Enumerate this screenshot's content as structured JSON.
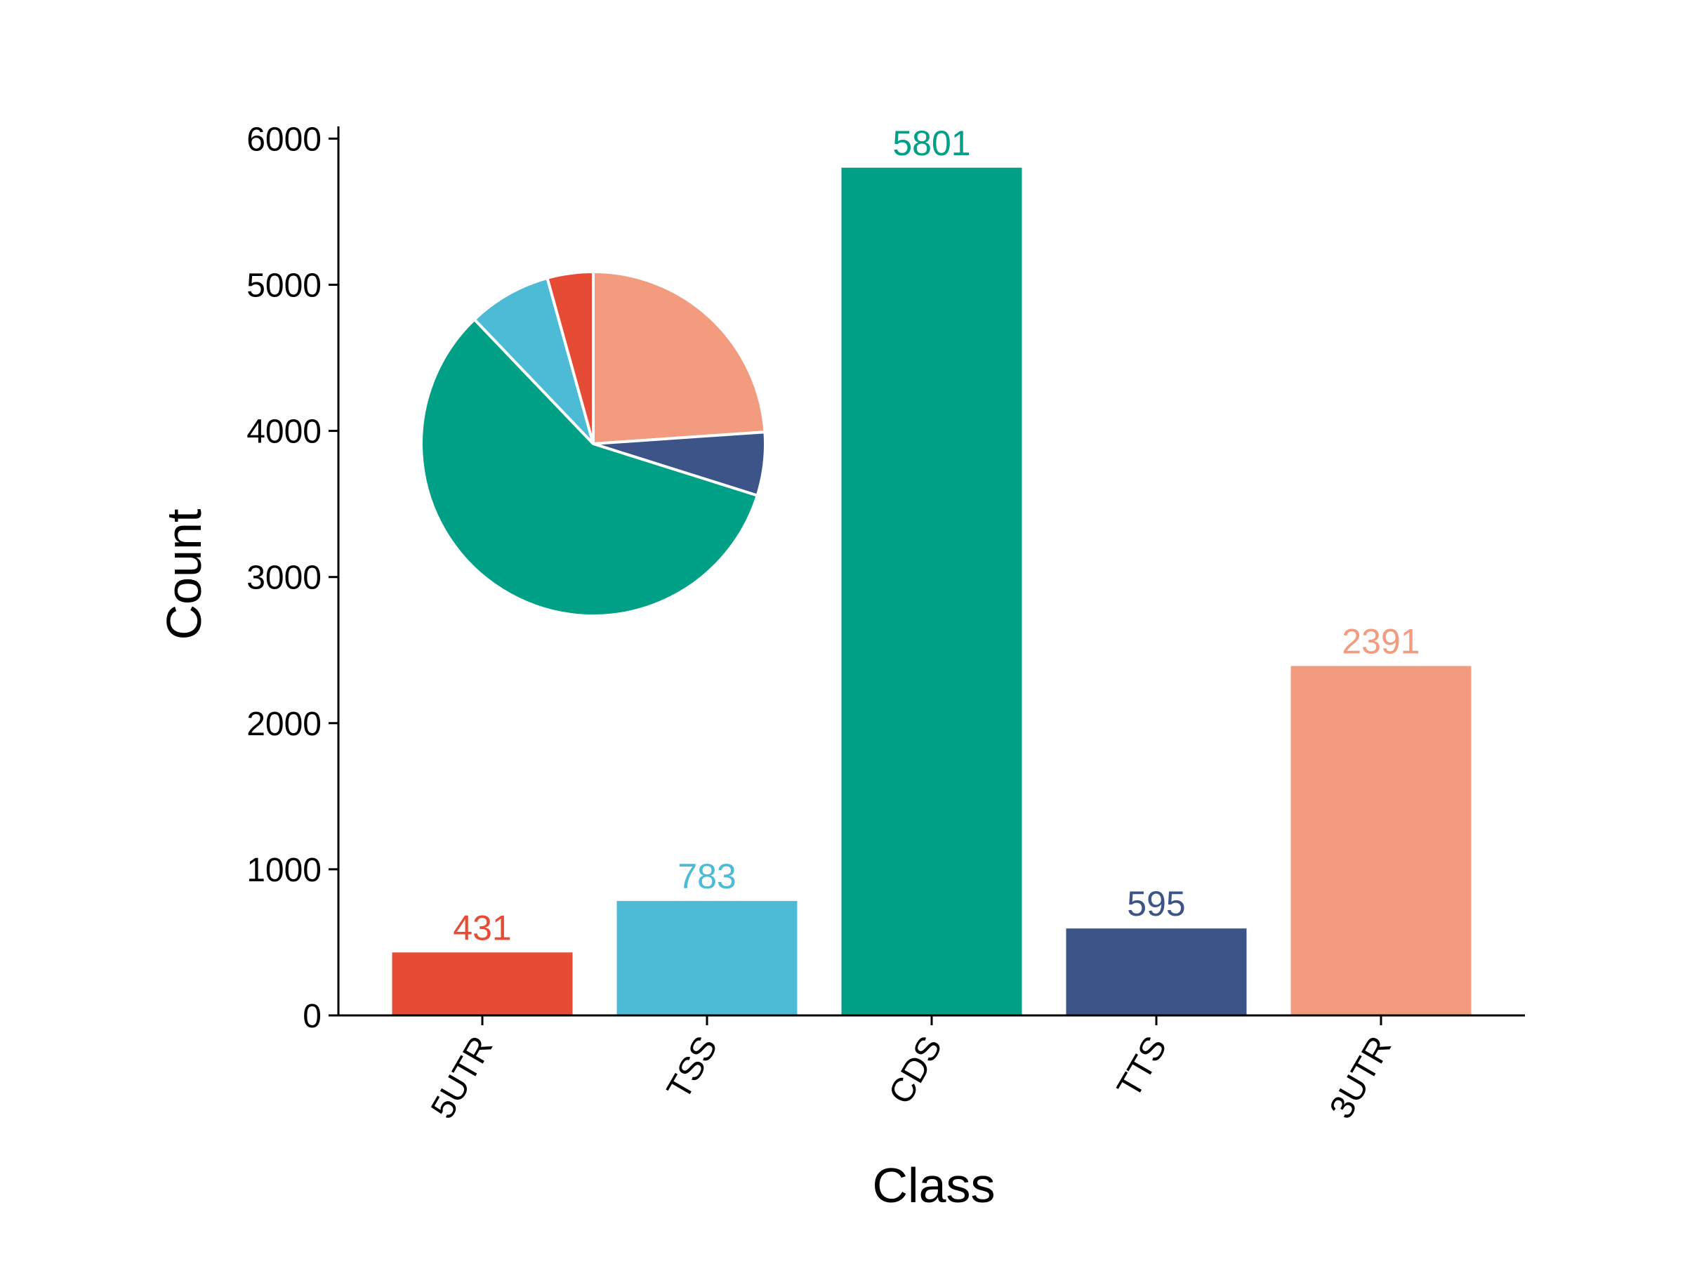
{
  "chart_data": {
    "type": "bar",
    "categories": [
      "5UTR",
      "TSS",
      "CDS",
      "TTS",
      "3UTR"
    ],
    "values": [
      431,
      783,
      5801,
      595,
      2391
    ],
    "colors": [
      "#E64B35",
      "#4DBBD5",
      "#00A087",
      "#3C5488",
      "#F39B7F"
    ],
    "xlabel": "Class",
    "ylabel": "Count",
    "ylim": [
      0,
      6100
    ],
    "yticks": [
      "0",
      "1000",
      "2000",
      "3000",
      "4000",
      "5000",
      "6000"
    ],
    "grid": false,
    "inset": {
      "type": "pie",
      "order": [
        "3UTR",
        "TTS",
        "CDS",
        "TSS",
        "5UTR"
      ],
      "start_angle_deg": 90,
      "direction": "clockwise",
      "edge_color": "#ffffff"
    }
  }
}
